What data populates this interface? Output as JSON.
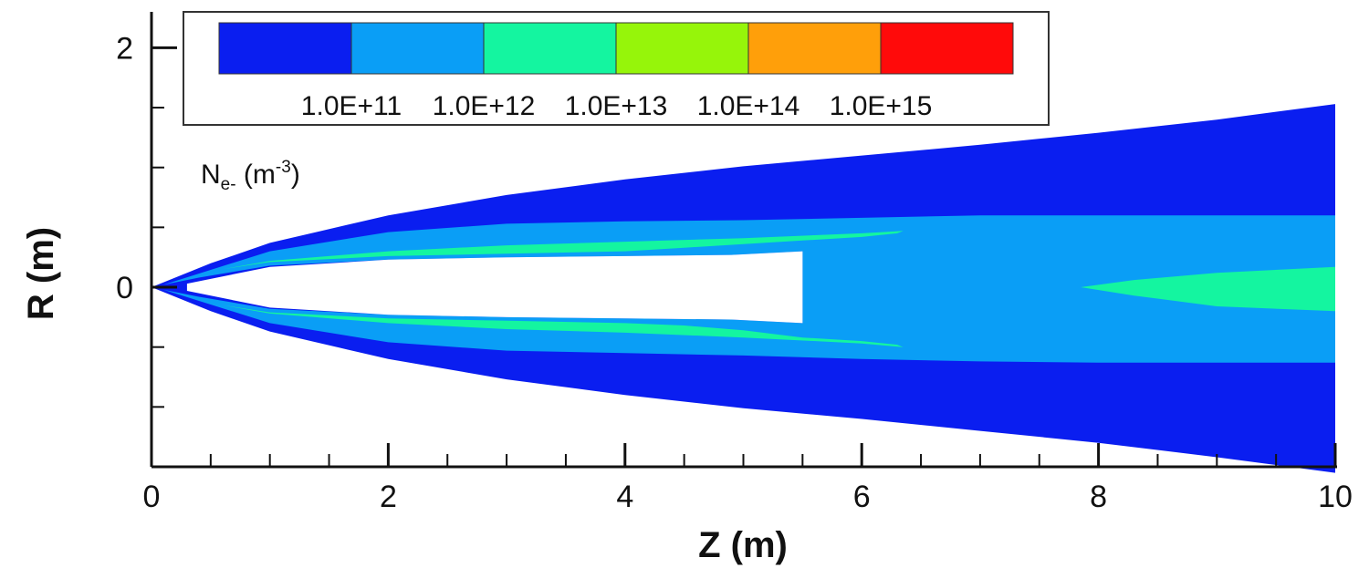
{
  "chart_data": {
    "type": "heatmap",
    "title": "",
    "xlabel": "Z (m)",
    "ylabel": "R (m)",
    "xlim": [
      0,
      10
    ],
    "ylim": [
      -1.5,
      2.3
    ],
    "x_ticks": [
      "0",
      "2",
      "4",
      "6",
      "8",
      "10"
    ],
    "y_ticks": [
      "2",
      "0"
    ],
    "x_minor_step": 0.5,
    "y_minor_step": 0.5,
    "grid": false,
    "legend": {
      "placement": "top-left",
      "title": {
        "base": "N",
        "subscript": "e-",
        "unit_open": " (m",
        "superscript": "-3",
        "unit_close": ")"
      },
      "labels": [
        "1.0E+11",
        "1.0E+12",
        "1.0E+13",
        "1.0E+14",
        "1.0E+15"
      ],
      "colors": [
        "#0a1ef0",
        "#0a9ef6",
        "#14f5a0",
        "#96f50a",
        "#ff9f0a",
        "#ff0a0a"
      ]
    },
    "regions": [
      {
        "name": "plume-envelope",
        "level": "< 1.0E+11",
        "color": "#0a1ef0",
        "upper": [
          [
            0,
            0
          ],
          [
            0.5,
            0.2
          ],
          [
            1,
            0.37
          ],
          [
            2,
            0.6
          ],
          [
            3,
            0.77
          ],
          [
            4,
            0.9
          ],
          [
            5,
            1.01
          ],
          [
            6,
            1.1
          ],
          [
            7,
            1.19
          ],
          [
            8,
            1.29
          ],
          [
            9,
            1.4
          ],
          [
            10,
            1.53
          ]
        ],
        "lower": [
          [
            0,
            0
          ],
          [
            0.5,
            -0.2
          ],
          [
            1,
            -0.37
          ],
          [
            2,
            -0.6
          ],
          [
            3,
            -0.77
          ],
          [
            4,
            -0.9
          ],
          [
            5,
            -1.01
          ],
          [
            6,
            -1.1
          ],
          [
            7,
            -1.2
          ],
          [
            8,
            -1.3
          ],
          [
            9,
            -1.42
          ],
          [
            10,
            -1.55
          ]
        ]
      },
      {
        "name": "upper-inner-layer",
        "level": "1.0E+11 - 1.0E+12",
        "color": "#0a9ef6",
        "points": [
          [
            0.1,
            0.02
          ],
          [
            1,
            0.3
          ],
          [
            2,
            0.46
          ],
          [
            3,
            0.53
          ],
          [
            4,
            0.55
          ],
          [
            5,
            0.56
          ],
          [
            6,
            0.58
          ],
          [
            7,
            0.6
          ],
          [
            8,
            0.6
          ],
          [
            9,
            0.6
          ],
          [
            10,
            0.6
          ],
          [
            10,
            0
          ],
          [
            5.5,
            0
          ],
          [
            5.5,
            0.3
          ],
          [
            4.9,
            0.27
          ],
          [
            4,
            0.26
          ],
          [
            3,
            0.25
          ],
          [
            2,
            0.23
          ],
          [
            1,
            0.18
          ],
          [
            0.4,
            0.08
          ]
        ]
      },
      {
        "name": "lower-inner-layer",
        "level": "1.0E+11 - 1.0E+12",
        "color": "#0a9ef6",
        "points": [
          [
            0.1,
            -0.02
          ],
          [
            1,
            -0.3
          ],
          [
            2,
            -0.46
          ],
          [
            3,
            -0.53
          ],
          [
            4,
            -0.55
          ],
          [
            5,
            -0.57
          ],
          [
            6,
            -0.6
          ],
          [
            7,
            -0.62
          ],
          [
            8,
            -0.63
          ],
          [
            9,
            -0.63
          ],
          [
            10,
            -0.63
          ],
          [
            10,
            0
          ],
          [
            5.5,
            0
          ],
          [
            5.5,
            -0.3
          ],
          [
            4.9,
            -0.27
          ],
          [
            4,
            -0.26
          ],
          [
            3,
            -0.25
          ],
          [
            2,
            -0.23
          ],
          [
            1,
            -0.18
          ],
          [
            0.4,
            -0.08
          ]
        ]
      },
      {
        "name": "upper-shell",
        "level": "1.0E+12 - 1.0E+13",
        "color": "#14f5a0",
        "points": [
          [
            0.6,
            0.15
          ],
          [
            1,
            0.22
          ],
          [
            2,
            0.3
          ],
          [
            3,
            0.35
          ],
          [
            4,
            0.38
          ],
          [
            5,
            0.41
          ],
          [
            6,
            0.45
          ],
          [
            6.35,
            0.47
          ],
          [
            6.3,
            0.45
          ],
          [
            6,
            0.42
          ],
          [
            5.5,
            0.39
          ],
          [
            5,
            0.36
          ],
          [
            4.5,
            0.33
          ],
          [
            4,
            0.3
          ],
          [
            3,
            0.28
          ],
          [
            2,
            0.26
          ],
          [
            1,
            0.21
          ]
        ]
      },
      {
        "name": "lower-shell",
        "level": "1.0E+12 - 1.0E+13",
        "color": "#14f5a0",
        "points": [
          [
            0.6,
            -0.15
          ],
          [
            1,
            -0.22
          ],
          [
            2,
            -0.3
          ],
          [
            3,
            -0.35
          ],
          [
            4,
            -0.38
          ],
          [
            5,
            -0.42
          ],
          [
            6,
            -0.47
          ],
          [
            6.35,
            -0.5
          ],
          [
            6.3,
            -0.48
          ],
          [
            6,
            -0.45
          ],
          [
            5.5,
            -0.42
          ],
          [
            5,
            -0.36
          ],
          [
            4.5,
            -0.32
          ],
          [
            4,
            -0.3
          ],
          [
            3,
            -0.28
          ],
          [
            2,
            -0.26
          ],
          [
            1,
            -0.21
          ]
        ]
      },
      {
        "name": "core",
        "level": "1.0E+12 - 1.0E+13",
        "color": "#14f5a0",
        "points": [
          [
            7.85,
            0
          ],
          [
            8.3,
            0.06
          ],
          [
            9,
            0.12
          ],
          [
            10,
            0.17
          ],
          [
            10,
            -0.2
          ],
          [
            9,
            -0.16
          ],
          [
            8.3,
            -0.07
          ]
        ]
      },
      {
        "name": "near-field-void",
        "level": "no data",
        "color": "#ffffff",
        "points": [
          [
            0.3,
            0.03
          ],
          [
            1,
            0.17
          ],
          [
            2,
            0.23
          ],
          [
            3,
            0.25
          ],
          [
            4,
            0.26
          ],
          [
            4.9,
            0.27
          ],
          [
            5.5,
            0.3
          ],
          [
            5.5,
            -0.3
          ],
          [
            4.9,
            -0.27
          ],
          [
            4,
            -0.26
          ],
          [
            3,
            -0.25
          ],
          [
            2,
            -0.23
          ],
          [
            1,
            -0.17
          ],
          [
            0.3,
            -0.03
          ]
        ]
      }
    ]
  }
}
